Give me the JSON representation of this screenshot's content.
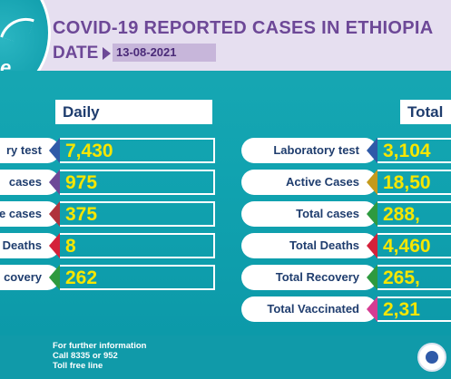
{
  "header": {
    "title": "COVID-19 REPORTED CASES IN ETHIOPIA",
    "date_label": "DATE",
    "date_value": "13-08-2021",
    "logo_letter": "e"
  },
  "daily": {
    "heading": "Daily",
    "rows": [
      {
        "label": "ry test",
        "value": "7,430",
        "accent": "#2f5aa8"
      },
      {
        "label": "cases",
        "value": "975",
        "accent": "#6d4897"
      },
      {
        "label": "e cases",
        "value": "375",
        "accent": "#b0323c"
      },
      {
        "label": "Deaths",
        "value": "8",
        "accent": "#d4213a"
      },
      {
        "label": "covery",
        "value": "262",
        "accent": "#2e9a3f"
      }
    ]
  },
  "total": {
    "heading": "Total",
    "rows": [
      {
        "label": "Laboratory test",
        "value": "3,104",
        "accent": "#2f5aa8"
      },
      {
        "label": "Active Cases",
        "value": "18,50",
        "accent": "#c59a1c"
      },
      {
        "label": "Total cases",
        "value": "288,",
        "accent": "#2e9a3f"
      },
      {
        "label": "Total Deaths",
        "value": "4,460",
        "accent": "#d4213a"
      },
      {
        "label": "Total Recovery",
        "value": "265,",
        "accent": "#2e9a3f"
      },
      {
        "label": "Total Vaccinated",
        "value": "2,31",
        "accent": "#d63c92"
      }
    ]
  },
  "footer": {
    "line1": "For further information",
    "line2": "Call 8335 or 952",
    "line3": "Toll free line"
  }
}
